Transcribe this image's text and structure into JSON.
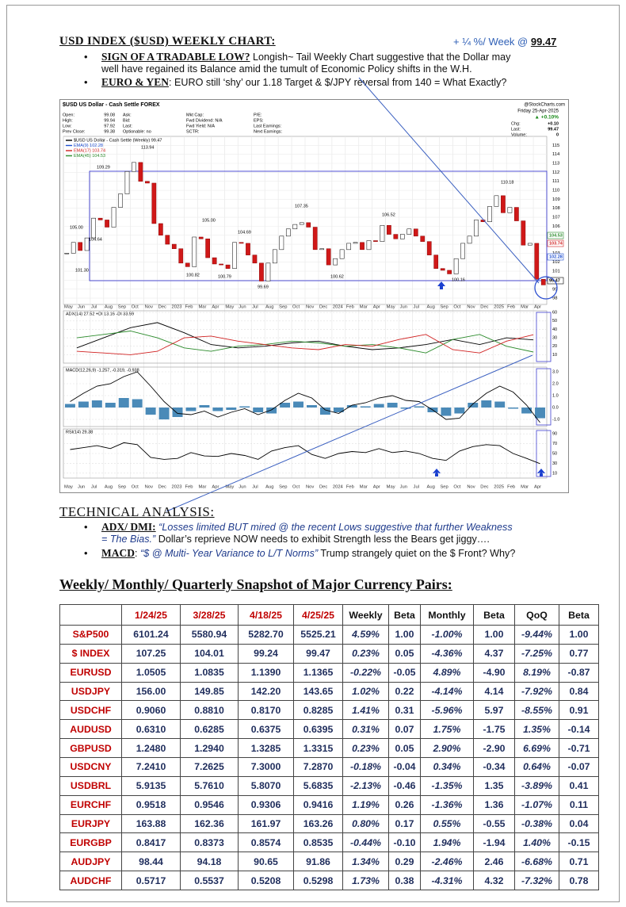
{
  "header": {
    "title": "USD INDEX ($USD) WEEKLY CHART:",
    "weekly_change": "+ ¼ %/ Week @",
    "weekly_level": "99.47"
  },
  "bullets": [
    {
      "lead": "SIGN OF A TRADABLE LOW?",
      "line1": " Longish~ Tail Weekly Chart suggestive that the Dollar may",
      "line2": "well have regained its Balance amid the tumult of Economic Policy shifts in the W.H."
    },
    {
      "lead": "EURO & YEN",
      "line1": ": EURO still ‘shy’ our 1.18 Target & $/JPY reversal from 140 = What Exactly?"
    }
  ],
  "chart": {
    "type": "candlestick",
    "symbol": "$USD US Dollar - Cash Settle FOREX",
    "source": "@StockCharts.com",
    "date": "Friday 25-Apr-2025",
    "change_pct": "▲ +0.10%",
    "stats": [
      [
        "Open:",
        "99.08"
      ],
      [
        "High:",
        "99.94"
      ],
      [
        "Low:",
        "97.92"
      ],
      [
        "Prev Close:",
        "99.38"
      ]
    ],
    "stats_mid": [
      "Ask:",
      "Bid:",
      "Last:",
      "Optionable:  no"
    ],
    "stats_mid2": [
      "Mkt Cap:",
      "Fwd Dividend:  N/A",
      "Fwd Yield:  N/A",
      "SCTR:"
    ],
    "stats_mid3": [
      "P/E:",
      "EPS:",
      "Last Earnings:",
      "Next Earnings:"
    ],
    "stats_right": [
      [
        "Chg:",
        "+0.10"
      ],
      [
        "Last:",
        "99.47"
      ],
      [
        "Volume:",
        "0"
      ]
    ],
    "legend": [
      {
        "name": "$USD US Dollar - Cash Settle (Weekly) 99.47",
        "color": "#000000"
      },
      {
        "name": "EMA(9) 102.28",
        "color": "#1f4fd0"
      },
      {
        "name": "EMA(17) 103.74",
        "color": "#d02020"
      },
      {
        "name": "EMA(45) 104.53",
        "color": "#2a8a2a"
      }
    ],
    "axis_flags": [
      "104.53",
      "103.74",
      "102.28",
      "99.47"
    ],
    "months": [
      "May",
      "Jun",
      "Jul",
      "Aug",
      "Sep",
      "Oct",
      "Nov",
      "Dec",
      "2023",
      "Feb",
      "Mar",
      "Apr",
      "May",
      "Jun",
      "Jul",
      "Aug",
      "Sep",
      "Oct",
      "Nov",
      "Dec",
      "2024",
      "Feb",
      "Mar",
      "Apr",
      "May",
      "Jun",
      "Jul",
      "Aug",
      "Sep",
      "Oct",
      "Nov",
      "Dec",
      "2025",
      "Feb",
      "Mar",
      "Apr"
    ],
    "ylim": [
      97.3,
      116
    ],
    "yticks": [
      98,
      99,
      100,
      101,
      102,
      103,
      104,
      105,
      106,
      107,
      108,
      109,
      110,
      111,
      112,
      113,
      114,
      115
    ],
    "closes": [
      103.0,
      104.2,
      103.3,
      104.7,
      106.9,
      106.7,
      105.9,
      108.1,
      109.6,
      112.1,
      113.1,
      111.0,
      110.8,
      106.3,
      105.0,
      104.0,
      103.5,
      101.9,
      101.5,
      104.8,
      104.6,
      102.5,
      101.8,
      101.7,
      101.3,
      104.2,
      104.1,
      102.8,
      101.9,
      99.9,
      101.9,
      103.4,
      104.9,
      105.7,
      106.2,
      106.4,
      105.9,
      103.4,
      103.5,
      101.7,
      102.4,
      103.4,
      104.1,
      104.2,
      103.4,
      104.4,
      104.3,
      106.1,
      105.1,
      104.6,
      105.1,
      105.7,
      104.9,
      104.3,
      102.8,
      101.3,
      101.1,
      100.7,
      102.4,
      104.1,
      104.9,
      106.7,
      106.5,
      108.2,
      109.4,
      107.5,
      108.1,
      106.6,
      103.9,
      104.1,
      100.1,
      99.47
    ],
    "price_labels": [
      "105.00",
      "104.64",
      "101.30",
      "109.29",
      "113.94",
      "100.82",
      "105.00",
      "100.79",
      "104.69",
      "99.69",
      "107.35",
      "100.62",
      "106.52",
      "100.16",
      "110.18"
    ],
    "adx": {
      "label": "ADX(14) 27.52 +DI 13.16 -DI 33.59",
      "ylim": [
        0,
        62
      ],
      "yticks": [
        10,
        20,
        30,
        40,
        50,
        60
      ],
      "series": [
        {
          "color": "#000000",
          "values": [
            18,
            30,
            42,
            48,
            36,
            22,
            18,
            20,
            24,
            26,
            20,
            16,
            18,
            22,
            28,
            22,
            30,
            27.52
          ]
        },
        {
          "color": "#2a8a2a",
          "values": [
            30,
            34,
            38,
            30,
            18,
            14,
            20,
            22,
            26,
            24,
            20,
            22,
            18,
            12,
            28,
            34,
            20,
            13.16
          ]
        },
        {
          "color": "#d02020",
          "values": [
            14,
            12,
            10,
            14,
            30,
            32,
            26,
            22,
            18,
            16,
            22,
            20,
            28,
            34,
            16,
            12,
            26,
            33.59
          ]
        }
      ]
    },
    "macd": {
      "label": "MACD(12,26,9) -1.257, -0.319, -0.938",
      "ylim": [
        -1.6,
        3.4
      ],
      "yticks": [
        {
          "value": -1,
          "label": "-1.0"
        },
        {
          "value": 0,
          "label": "0.0"
        },
        {
          "value": 1,
          "label": "1.0"
        },
        {
          "value": 2,
          "label": "2.0"
        },
        {
          "value": 3,
          "label": "3.0"
        }
      ],
      "hist_color": "#4a8ab8",
      "hist": [
        0.3,
        0.5,
        0.6,
        0.4,
        0.8,
        0.7,
        -0.6,
        -1.0,
        -0.8,
        -0.3,
        0.2,
        -0.3,
        -0.2,
        0.1,
        -0.4,
        -0.5,
        0.4,
        0.5,
        0.2,
        -0.6,
        -0.4,
        0.2,
        0.1,
        0.3,
        0.4,
        -0.1,
        0.1,
        -0.4,
        -0.7,
        -0.5,
        0.4,
        0.6,
        0.5,
        -0.1,
        -0.5,
        -0.9
      ],
      "line": [
        0.5,
        1.2,
        1.8,
        2.0,
        2.6,
        3.0,
        1.8,
        0.5,
        -0.5,
        -0.6,
        -0.3,
        -0.8,
        -0.4,
        -0.1,
        -0.6,
        -0.2,
        0.6,
        1.2,
        0.8,
        -0.2,
        -0.5,
        0.2,
        0.4,
        0.8,
        1.0,
        0.6,
        0.5,
        -0.2,
        -1.0,
        -0.9,
        0.3,
        1.2,
        1.8,
        1.3,
        0.2,
        -1.257
      ]
    },
    "rsi": {
      "label": "RSI(14) 29.38",
      "ylim": [
        0,
        100
      ],
      "yticks": [
        10,
        30,
        50,
        70,
        90
      ],
      "values": [
        58,
        62,
        66,
        60,
        72,
        68,
        42,
        38,
        40,
        52,
        45,
        44,
        50,
        46,
        38,
        55,
        62,
        66,
        48,
        40,
        50,
        54,
        52,
        60,
        52,
        55,
        50,
        40,
        36,
        55,
        64,
        68,
        66,
        50,
        40,
        29.38
      ]
    }
  },
  "technical": {
    "title": "TECHNICAL ANALYSIS:",
    "bullets": [
      {
        "lead": "ADX/ DMI:",
        "quote1": " “Losses limited BUT mired @ the recent Lows suggestive that further Weakness",
        "quote2": "= The Bias.”",
        "text": "   Dollar’s reprieve NOW needs to exhibit Strength less the Bears get jiggy…."
      },
      {
        "lead": "MACD",
        "colon": ": ",
        "quote1": "“$ @ Multi- Year Variance to L/T Norms”",
        "text": " Trump strangely quiet on the $ Front? Why?"
      }
    ]
  },
  "table": {
    "title": "Weekly/ Monthly/ Quarterly Snapshot of Major Currency Pairs:",
    "columns": [
      "1/24/25",
      "3/28/25",
      "4/18/25",
      "4/25/25",
      "Weekly",
      "Beta",
      "Monthly",
      "Beta",
      "QoQ",
      "Beta"
    ],
    "rows": [
      [
        "S&P500",
        "6101.24",
        "5580.94",
        "5282.70",
        "5525.21",
        "4.59%",
        "1.00",
        "-1.00%",
        "1.00",
        "-9.44%",
        "1.00"
      ],
      [
        "$ INDEX",
        "107.25",
        "104.01",
        "99.24",
        "99.47",
        "0.23%",
        "0.05",
        "-4.36%",
        "4.37",
        "-7.25%",
        "0.77"
      ],
      [
        "EURUSD",
        "1.0505",
        "1.0835",
        "1.1390",
        "1.1365",
        "-0.22%",
        "-0.05",
        "4.89%",
        "-4.90",
        "8.19%",
        "-0.87"
      ],
      [
        "USDJPY",
        "156.00",
        "149.85",
        "142.20",
        "143.65",
        "1.02%",
        "0.22",
        "-4.14%",
        "4.14",
        "-7.92%",
        "0.84"
      ],
      [
        "USDCHF",
        "0.9060",
        "0.8810",
        "0.8170",
        "0.8285",
        "1.41%",
        "0.31",
        "-5.96%",
        "5.97",
        "-8.55%",
        "0.91"
      ],
      [
        "AUDUSD",
        "0.6310",
        "0.6285",
        "0.6375",
        "0.6395",
        "0.31%",
        "0.07",
        "1.75%",
        "-1.75",
        "1.35%",
        "-0.14"
      ],
      [
        "GBPUSD",
        "1.2480",
        "1.2940",
        "1.3285",
        "1.3315",
        "0.23%",
        "0.05",
        "2.90%",
        "-2.90",
        "6.69%",
        "-0.71"
      ],
      [
        "USDCNY",
        "7.2410",
        "7.2625",
        "7.3000",
        "7.2870",
        "-0.18%",
        "-0.04",
        "0.34%",
        "-0.34",
        "0.64%",
        "-0.07"
      ],
      [
        "USDBRL",
        "5.9135",
        "5.7610",
        "5.8070",
        "5.6835",
        "-2.13%",
        "-0.46",
        "-1.35%",
        "1.35",
        "-3.89%",
        "0.41"
      ],
      [
        "EURCHF",
        "0.9518",
        "0.9546",
        "0.9306",
        "0.9416",
        "1.19%",
        "0.26",
        "-1.36%",
        "1.36",
        "-1.07%",
        "0.11"
      ],
      [
        "EURJPY",
        "163.88",
        "162.36",
        "161.97",
        "163.26",
        "0.80%",
        "0.17",
        "0.55%",
        "-0.55",
        "-0.38%",
        "0.04"
      ],
      [
        "EURGBP",
        "0.8417",
        "0.8373",
        "0.8574",
        "0.8535",
        "-0.44%",
        "-0.10",
        "1.94%",
        "-1.94",
        "1.40%",
        "-0.15"
      ],
      [
        "AUDJPY",
        "98.44",
        "94.18",
        "90.65",
        "91.86",
        "1.34%",
        "0.29",
        "-2.46%",
        "2.46",
        "-6.68%",
        "0.71"
      ],
      [
        "AUDCHF",
        "0.5717",
        "0.5537",
        "0.5208",
        "0.5298",
        "1.73%",
        "0.38",
        "-4.31%",
        "4.32",
        "-7.32%",
        "0.78"
      ]
    ]
  }
}
